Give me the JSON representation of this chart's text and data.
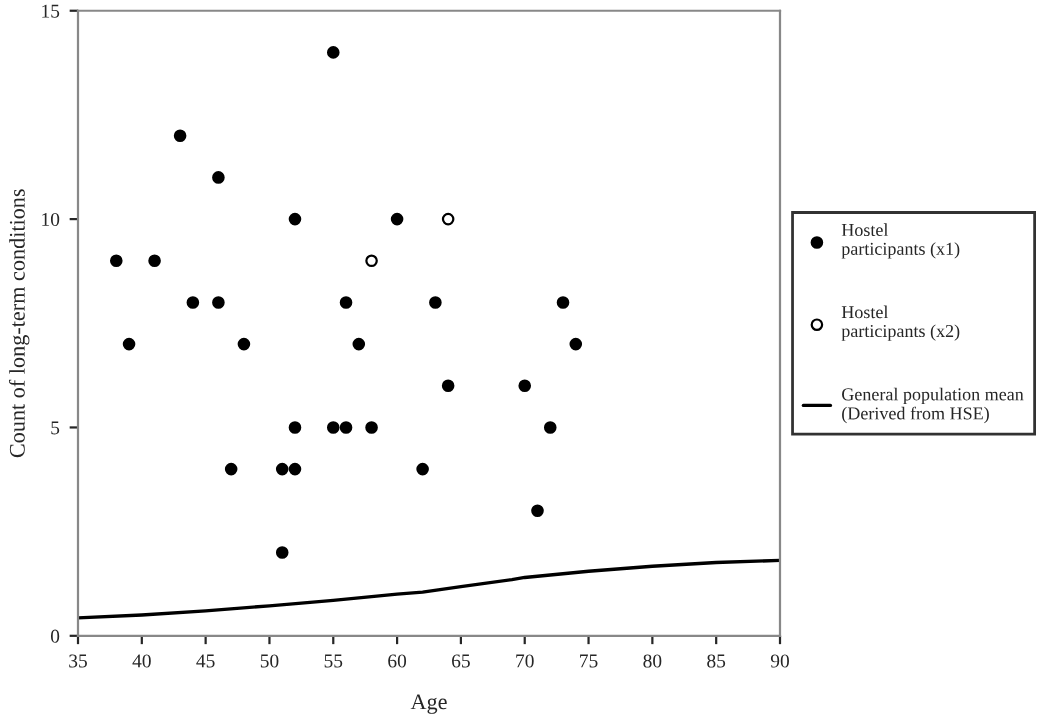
{
  "chart_data": {
    "type": "scatter",
    "xlabel": "Age",
    "ylabel": "Count of long-term conditions",
    "xlim": [
      35,
      90
    ],
    "xticks": [
      35,
      40,
      45,
      50,
      55,
      60,
      65,
      70,
      75,
      80,
      85,
      90
    ],
    "ylim": [
      0,
      15
    ],
    "yticks": [
      0,
      5,
      10,
      15
    ],
    "grid": false,
    "legend": "right",
    "marker": "circle",
    "series": [
      {
        "name": "Hostel\nparticipants (x1)",
        "color": "#000000",
        "x": [
          38,
          39,
          41,
          43,
          44,
          46,
          46,
          47,
          48,
          51,
          51,
          52,
          52,
          52,
          55,
          55,
          56,
          56,
          57,
          58,
          60,
          62,
          63,
          64,
          70,
          71,
          72,
          73,
          74
        ],
        "values": [
          9,
          7,
          9,
          12,
          8,
          11,
          8,
          4,
          7,
          4,
          2,
          10,
          5,
          4,
          14,
          5,
          8,
          5,
          7,
          5,
          10,
          4,
          8,
          6,
          6,
          3,
          5,
          8,
          7
        ]
      },
      {
        "name": "Hostel\nparticipants (x2)",
        "color": "#ffffff",
        "x": [
          58,
          64
        ],
        "values": [
          9,
          10
        ]
      },
      {
        "name": "General population mean\n(Derived from HSE)",
        "type": "line",
        "color": "#000000",
        "marker": "none",
        "x": [
          35,
          40,
          45,
          50,
          55,
          60,
          62,
          65,
          69,
          70,
          75,
          80,
          85,
          90
        ],
        "values": [
          0.43,
          0.5,
          0.6,
          0.72,
          0.85,
          1.0,
          1.05,
          1.18,
          1.35,
          1.4,
          1.55,
          1.67,
          1.76,
          1.81
        ]
      }
    ]
  }
}
